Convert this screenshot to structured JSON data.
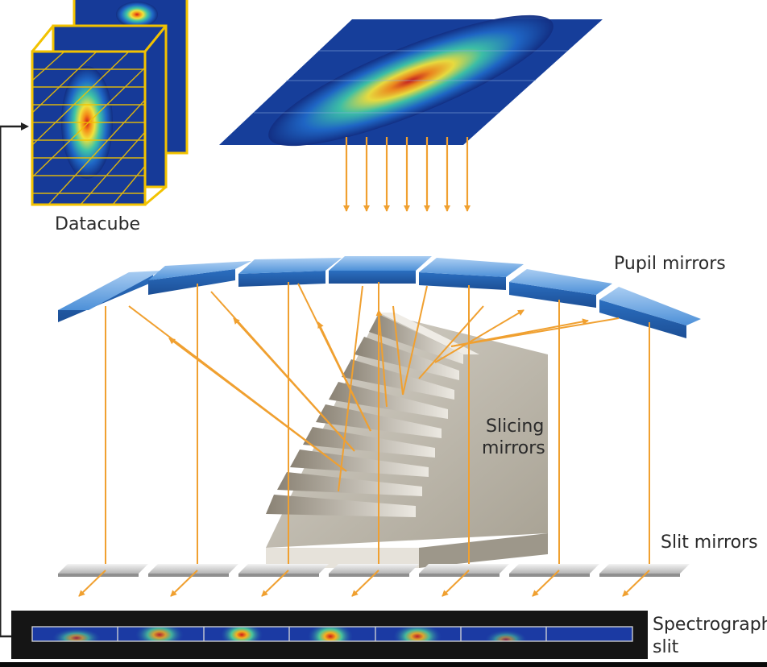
{
  "labels": {
    "datacube": "Datacube",
    "pupil_mirrors": "Pupil mirrors",
    "slicing_mirrors_line1": "Slicing",
    "slicing_mirrors_line2": "mirrors",
    "slit_mirrors": "Slit mirrors",
    "spectrograph_slit_line1": "Spectrograph",
    "spectrograph_slit_line2": "slit"
  },
  "colors": {
    "ray": "#f0a030",
    "cube_frame": "#f2c200",
    "mirror_blue": "#3f86d6",
    "mirror_grey": "#c8c8c8",
    "slicer_grey": "#bfbab0",
    "slit_bar": "#151515"
  },
  "counts": {
    "pupil_mirrors": 7,
    "slit_mirrors": 7,
    "slit_segments": 7,
    "input_rays": 7
  }
}
